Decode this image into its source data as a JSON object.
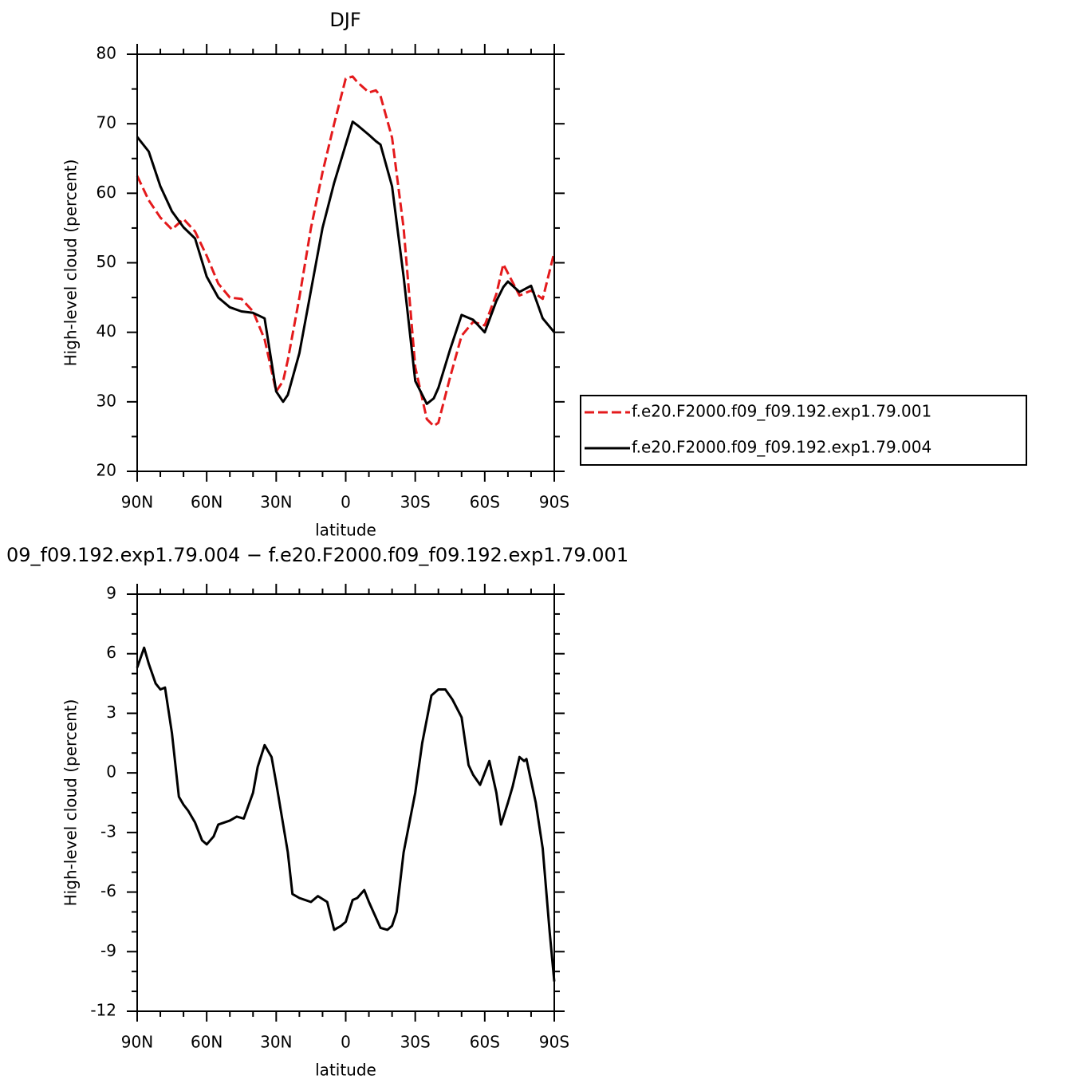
{
  "chart_data": [
    {
      "type": "line",
      "title": "DJF",
      "xlabel": "latitude",
      "ylabel": "High-level cloud (percent)",
      "x": [
        90,
        85,
        80,
        75,
        70,
        65,
        60,
        55,
        50,
        45,
        40,
        35,
        30,
        27,
        25,
        20,
        15,
        10,
        5,
        0,
        -3,
        -5,
        -10,
        -13,
        -15,
        -20,
        -25,
        -30,
        -35,
        -38,
        -40,
        -45,
        -50,
        -55,
        -60,
        -65,
        -68,
        -70,
        -75,
        -80,
        -85,
        -90
      ],
      "series": [
        {
          "name": "f.e20.F2000.f09_f09.192.exp1.79.001",
          "color": "#e41a1c",
          "linestyle": "dashed",
          "values": [
            62.5,
            59,
            56.5,
            54.8,
            56.3,
            54.5,
            51,
            47,
            45,
            44.8,
            43,
            39,
            31.5,
            33,
            36,
            45,
            55,
            63,
            70,
            76.5,
            76.8,
            76,
            74.5,
            74.8,
            74,
            68,
            55,
            35,
            27.5,
            26.5,
            27,
            33.5,
            39.5,
            41.5,
            41,
            45.5,
            49.8,
            48.5,
            45.3,
            46,
            44.8,
            51.5
          ]
        },
        {
          "name": "f.e20.F2000.f09_f09.192.exp1.79.004",
          "color": "#000000",
          "linestyle": "solid",
          "values": [
            68.1,
            66,
            61,
            57.4,
            55.1,
            53.5,
            48,
            45,
            43.6,
            43,
            42.8,
            42,
            31.5,
            30,
            31,
            37,
            46,
            55,
            61.5,
            67,
            70.3,
            69.8,
            68.4,
            67.5,
            67,
            61,
            48,
            33,
            29.7,
            30.5,
            32,
            37.5,
            42.5,
            41.8,
            40,
            44.5,
            46.5,
            47.3,
            45.8,
            46.7,
            42,
            40
          ]
        }
      ],
      "xlim": [
        90,
        -90
      ],
      "xticks": [
        {
          "value": 90,
          "label": "90N"
        },
        {
          "value": 60,
          "label": "60N"
        },
        {
          "value": 30,
          "label": "30N"
        },
        0,
        {
          "value": -30,
          "label": "30S"
        },
        {
          "value": -60,
          "label": "60S"
        },
        {
          "value": -90,
          "label": "90S"
        }
      ],
      "ylim": [
        20,
        80
      ],
      "yticks": [
        20,
        30,
        40,
        50,
        60,
        70,
        80
      ],
      "legend": "right"
    },
    {
      "type": "line",
      "title": "09_f09.192.exp1.79.004 − f.e20.F2000.f09_f09.192.exp1.79.001",
      "xlabel": "latitude",
      "ylabel": "High-level cloud (percent)",
      "x": [
        90,
        87,
        85,
        82,
        80,
        78,
        75,
        72,
        70,
        68,
        65,
        62,
        60,
        57,
        55,
        50,
        47,
        44,
        40,
        38,
        35,
        32,
        30,
        25,
        23,
        20,
        15,
        12,
        8,
        5,
        2,
        0,
        -3,
        -5,
        -8,
        -10,
        -15,
        -18,
        -20,
        -22,
        -25,
        -30,
        -33,
        -37,
        -40,
        -43,
        -46,
        -50,
        -53,
        -55,
        -58,
        -62,
        -65,
        -67,
        -70,
        -72,
        -75,
        -77,
        -78,
        -80,
        -82,
        -85,
        -88,
        -90
      ],
      "values": [
        5.3,
        6.3,
        5.5,
        4.5,
        4.2,
        4.3,
        2,
        -1.2,
        -1.6,
        -1.9,
        -2.5,
        -3.4,
        -3.6,
        -3.2,
        -2.6,
        -2.4,
        -2.2,
        -2.3,
        -1,
        0.3,
        1.4,
        0.8,
        -0.5,
        -4,
        -6.1,
        -6.3,
        -6.5,
        -6.2,
        -6.5,
        -7.9,
        -7.7,
        -7.5,
        -6.4,
        -6.3,
        -5.9,
        -6.5,
        -7.8,
        -7.9,
        -7.7,
        -7,
        -4,
        -1,
        1.5,
        3.9,
        4.2,
        4.2,
        3.7,
        2.8,
        0.4,
        -0.1,
        -0.6,
        0.6,
        -1,
        -2.6,
        -1.5,
        -0.7,
        0.8,
        0.6,
        0.7,
        -0.4,
        -1.5,
        -3.8,
        -8,
        -10.5
      ],
      "color": "#000000",
      "xlim": [
        90,
        -90
      ],
      "xticks": [
        {
          "value": 90,
          "label": "90N"
        },
        {
          "value": 60,
          "label": "60N"
        },
        {
          "value": 30,
          "label": "30N"
        },
        0,
        {
          "value": -30,
          "label": "30S"
        },
        {
          "value": -60,
          "label": "60S"
        },
        {
          "value": -90,
          "label": "90S"
        }
      ],
      "ylim": [
        -12,
        9
      ],
      "yticks": [
        -12,
        -9,
        -6,
        -3,
        0,
        3,
        6,
        9
      ]
    }
  ]
}
